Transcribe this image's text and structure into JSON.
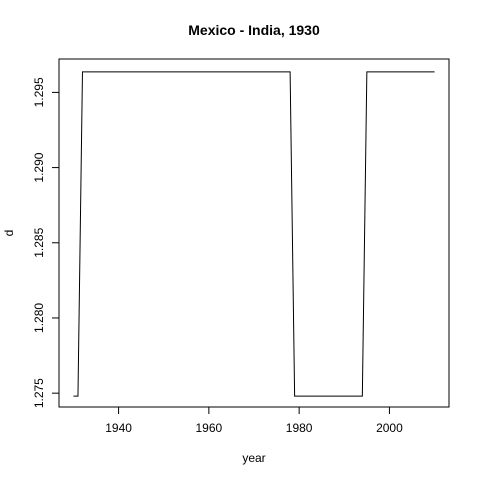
{
  "chart_data": {
    "type": "line",
    "title": "Mexico - India, 1930",
    "xlabel": "year",
    "ylabel": "d",
    "xlim": [
      1926.8,
      2013.2
    ],
    "ylim": [
      1.27408,
      1.29722
    ],
    "x_ticks": [
      1940,
      1960,
      1980,
      2000
    ],
    "x_tick_labels": [
      "1940",
      "1960",
      "1980",
      "2000"
    ],
    "y_ticks": [
      1.275,
      1.28,
      1.285,
      1.29,
      1.295
    ],
    "y_tick_labels": [
      "1.275",
      "1.280",
      "1.285",
      "1.290",
      "1.295"
    ],
    "grid": false,
    "line_color": "#000000",
    "series": [
      {
        "x": [
          1930,
          1931,
          1932,
          1978,
          1979,
          1994,
          1995,
          2010
        ],
        "y": [
          1.2748,
          1.2748,
          1.29636,
          1.29636,
          1.2748,
          1.2748,
          1.29636,
          1.29636
        ]
      }
    ]
  }
}
